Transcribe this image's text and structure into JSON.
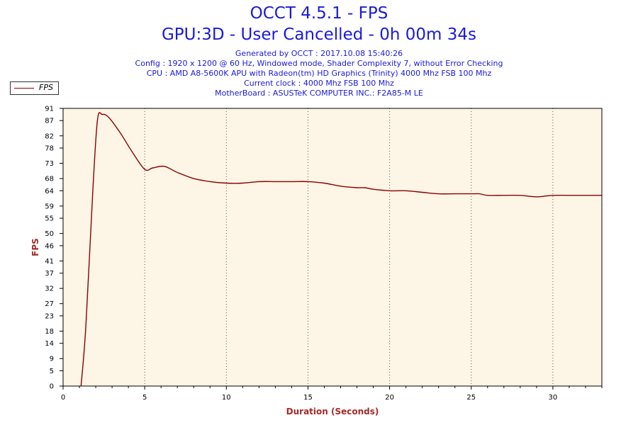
{
  "header": {
    "title": "OCCT 4.5.1 - FPS",
    "subtitle": "GPU:3D - User Cancelled - 0h 00m 34s",
    "info_lines": [
      "Generated by OCCT : 2017.10.08 15:40:26",
      "Config : 1920 x 1200 @ 60 Hz, Windowed mode, Shader Complexity 7, without Error Checking",
      "CPU : AMD A8-5600K APU with Radeon(tm) HD Graphics (Trinity) 4000 Mhz FSB 100 Mhz",
      "Current clock : 4000 Mhz FSB 100 Mhz",
      "MotherBoard : ASUSTeK COMPUTER INC.: F2A85-M LE"
    ]
  },
  "colors": {
    "series": "#8b0000",
    "plot_bg": "#fdf5e6",
    "title": "#1a1adb",
    "axis_label": "#a52a2a"
  },
  "chart_data": {
    "type": "line",
    "title": "OCCT 4.5.1 - FPS",
    "xlabel": "Duration (Seconds)",
    "ylabel": "FPS",
    "xlim": [
      0,
      33
    ],
    "ylim": [
      0,
      91
    ],
    "xticks": [
      "0",
      "5",
      "10",
      "15",
      "20",
      "25",
      "30"
    ],
    "yticks": [
      "0",
      "5",
      "9",
      "14",
      "18",
      "23",
      "27",
      "32",
      "37",
      "41",
      "46",
      "50",
      "55",
      "59",
      "64",
      "68",
      "73",
      "78",
      "82",
      "87",
      "91"
    ],
    "grid": "vertical-dotted",
    "legend": "top-left",
    "series": [
      {
        "name": "FPS",
        "x": [
          1.1,
          1.4,
          1.8,
          2.1,
          2.4,
          2.8,
          3.5,
          4.2,
          5.0,
          5.5,
          6.2,
          7.0,
          8.0,
          9.0,
          10.0,
          11.0,
          12.0,
          13.0,
          14.0,
          15.0,
          16.0,
          17.0,
          18.0,
          18.5,
          19.0,
          20.0,
          21.0,
          22.0,
          23.0,
          24.0,
          25.0,
          25.5,
          26.0,
          27.0,
          28.0,
          29.0,
          30.0,
          31.0,
          32.0,
          33.0
        ],
        "values": [
          0,
          20,
          62,
          87,
          89,
          88,
          83,
          77,
          71,
          71.5,
          72,
          70,
          68,
          67,
          66.5,
          66.5,
          67,
          67,
          67,
          67,
          66.5,
          65.5,
          65,
          65,
          64.5,
          64,
          64,
          63.5,
          63,
          63,
          63,
          63,
          62.5,
          62.5,
          62.5,
          62,
          62.5,
          62.5,
          62.5,
          62.5
        ]
      }
    ]
  }
}
